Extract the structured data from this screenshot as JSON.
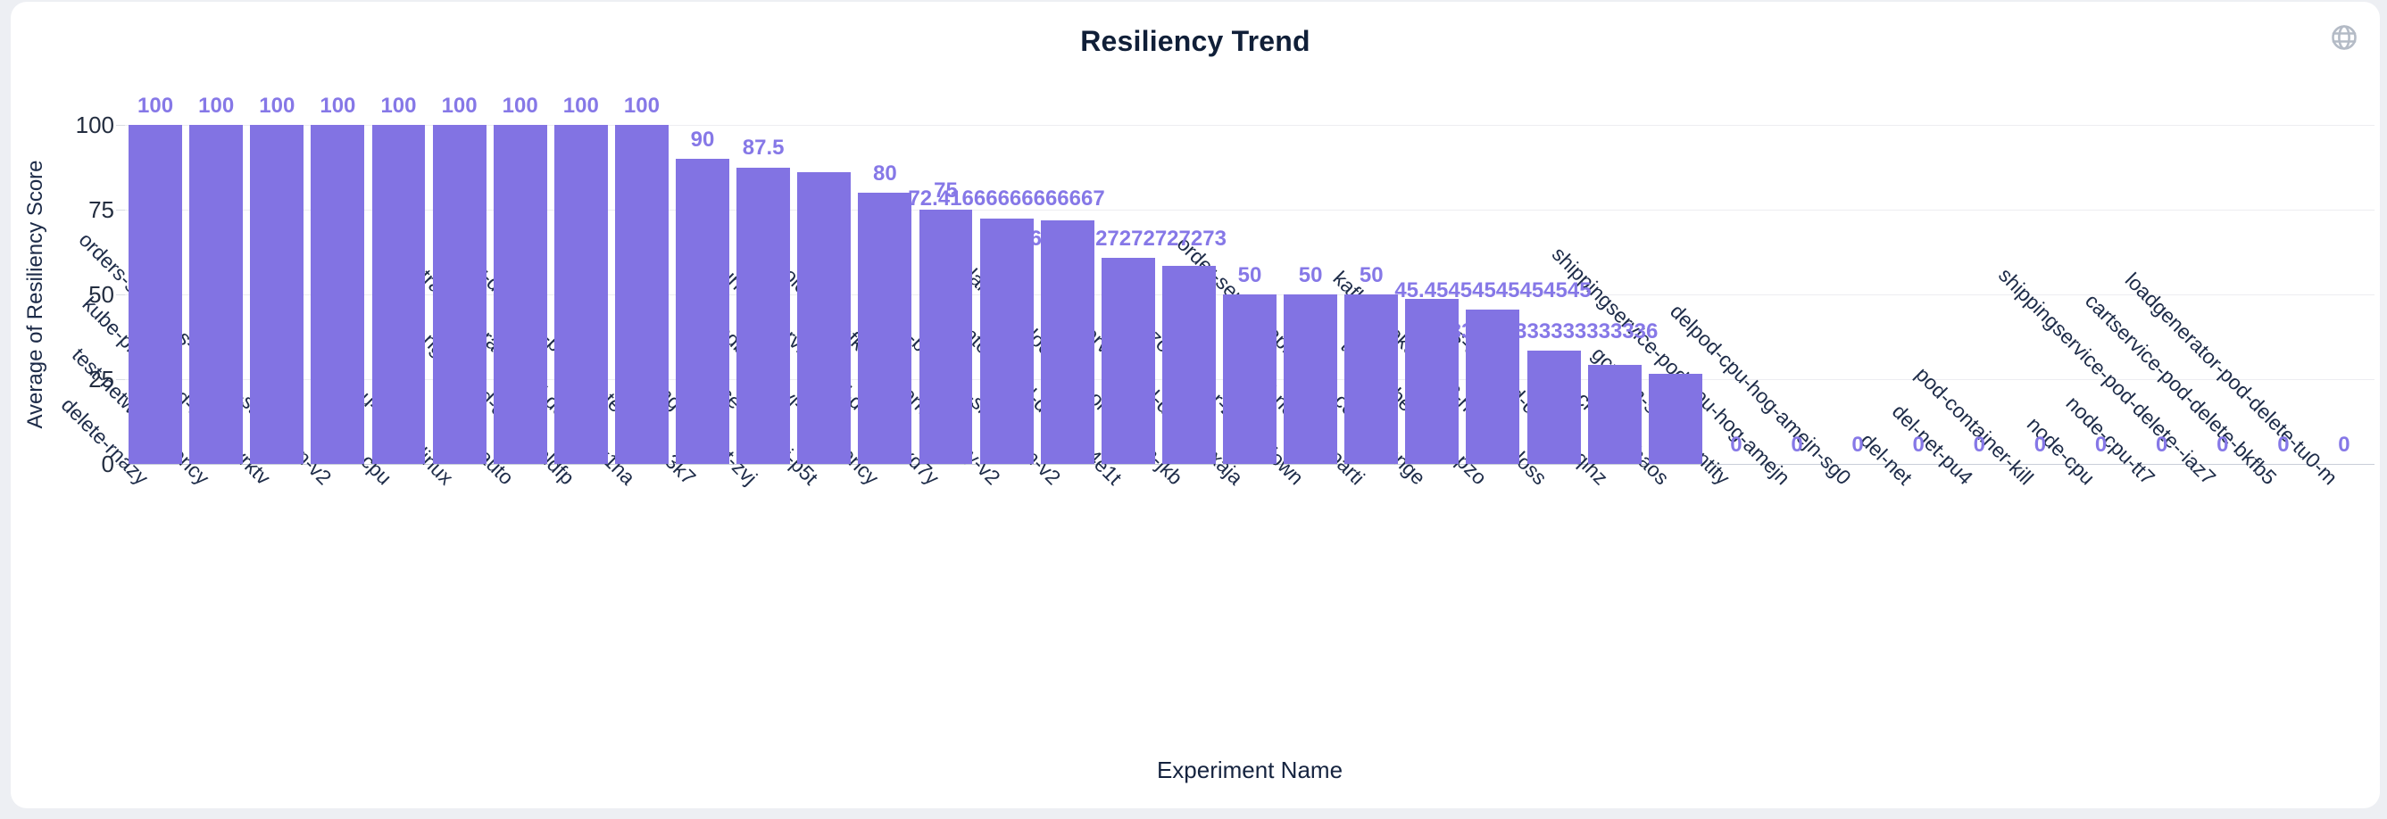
{
  "page": {
    "background": "#edeff3",
    "card_background": "#ffffff"
  },
  "header": {
    "title": "Resiliency Trend",
    "globe_icon": "globe-icon",
    "globe_color": "#b4bbc6"
  },
  "chart_data": {
    "type": "bar",
    "title": "Resiliency Trend",
    "xlabel": "Experiment Name",
    "ylabel": "Average of Resiliency Score",
    "ylim": [
      0,
      100
    ],
    "yticks": [
      100,
      75,
      50,
      25,
      0
    ],
    "ytick_labels": [
      "100",
      "75",
      "50",
      "25",
      "0"
    ],
    "grid": true,
    "legend": "none",
    "bar_color": "#8273e3",
    "value_label_color": "#8678e7",
    "categories": [
      "delete-rnazy",
      "test-network-latency",
      "kube-proxy-pod-delete-vrktv",
      "orders-slowness-via-cpu-starvation-v2",
      "linux-cpu",
      "cpu-stress-linux",
      "pod-auto",
      "nginx-pod-delete-pldfp",
      "dynatrace-operator-pod-delete-zx1na",
      "smr-delegate-pod-delete-437az-3k7",
      "mongodb-test-zvj",
      "solace-test-zvj-p5t",
      "mongodb-test-zvj-4c1-latency",
      "currencyservice-pod-delete-axd7y",
      "invoice-to-kafka-network-latency-v2",
      "kafka-broker-1-shutdown-v2",
      "frontend-pod-delete-e4e1t",
      "lambda-block-tcp-connection-jkb",
      "emailservice-pod-delete-pxaja",
      "kafka-zookeeper-2-shutdown",
      "pod-network-parti",
      "order-service-api-status-code-change",
      "test-probe-logger-pzo",
      "kafka-zookeeper-2-network-loss",
      "redis-cart-pod-delete-kqihz",
      "az-blackhole-chaos",
      "gcp-vm-stop-identity",
      "shippingservice-pod-cpu-hog-amejn",
      "delpod-cpu-hog-amejn-sg0",
      "del-net",
      "del-net-pu4",
      "pod-container-kill",
      "node-cpu",
      "node-cpu-tt7",
      "shippingservice-pod-delete--iaz7",
      "cartservice-pod-delete-bkfb5",
      "loadgenerator-pod-delete-tu0-m"
    ],
    "values": [
      100,
      100,
      100,
      100,
      100,
      100,
      100,
      100,
      100,
      90,
      87.5,
      86,
      80,
      75,
      72.41666666666667,
      71.8,
      60.72727272727273,
      58.3,
      50,
      50,
      50,
      48.6,
      45.45454545454545,
      33.333333333333336,
      29.3,
      26.7,
      0,
      0,
      0,
      0,
      0,
      0,
      0,
      0,
      0,
      0,
      0
    ],
    "bar_labels": [
      "100",
      "100",
      "100",
      "100",
      "100",
      "100",
      "100",
      "100",
      "100",
      "90",
      "87.5",
      null,
      "80",
      "75",
      "72.41666666666667",
      null,
      "60.72727272727273",
      null,
      "50",
      "50",
      "50",
      null,
      "45.45454545454545",
      "33.333333333333336",
      null,
      null,
      "0",
      "0",
      "0",
      "0",
      "0",
      "0",
      "0",
      "0",
      "0",
      "0",
      "0"
    ]
  }
}
